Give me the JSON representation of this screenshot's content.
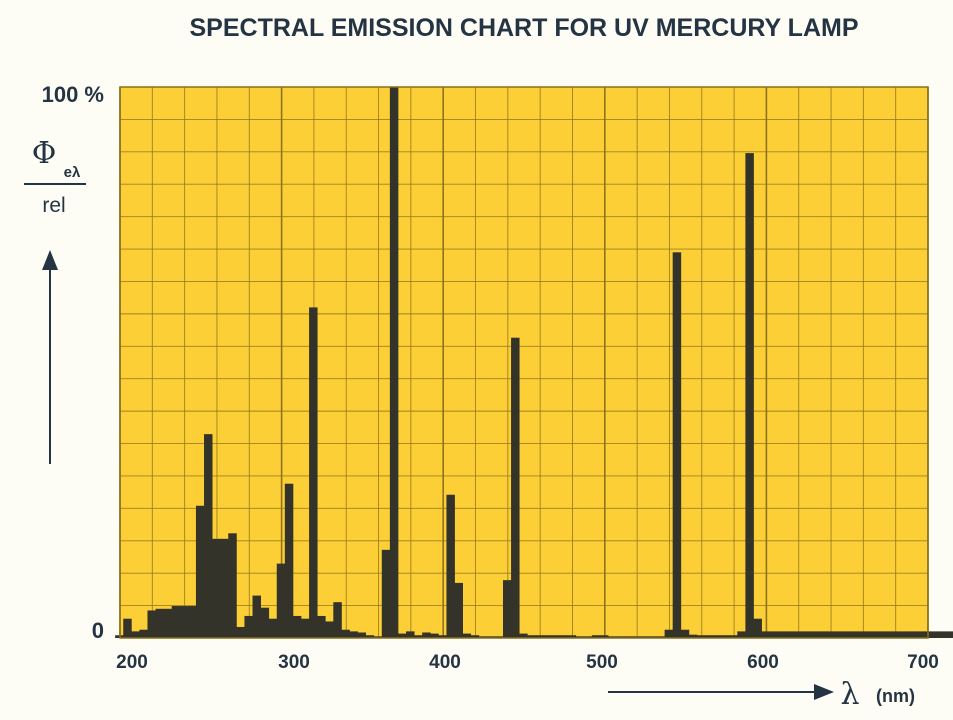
{
  "chart_data": {
    "type": "bar",
    "title": "SPECTRAL EMISSION CHART FOR UV MERCURY LAMP",
    "ylabel": {
      "symbol": "Φ",
      "subscript": "eλ",
      "denominator": "rel"
    },
    "xlabel": {
      "symbol": "λ",
      "unit": "(nm)"
    },
    "xlim": [
      200,
      700
    ],
    "ylim": [
      0,
      100
    ],
    "x_ticks": [
      "200",
      "300",
      "400",
      "500",
      "600",
      "700"
    ],
    "y_ticks": [
      "0",
      "100 %"
    ],
    "grid": true,
    "spectrum": {
      "bin_width": 5,
      "x_start": 197,
      "values": [
        0.5,
        3.5,
        1.2,
        1.5,
        5,
        5.3,
        5.3,
        5.8,
        5.8,
        5.8,
        24,
        37,
        18,
        18,
        19,
        2,
        4,
        7.7,
        5.5,
        3.5,
        13.5,
        28,
        4,
        3.5,
        60,
        4,
        3,
        6.5,
        1.5,
        1.2,
        1,
        0.5,
        0.3,
        16,
        100,
        0.8,
        1.2,
        0.5,
        1,
        0.8,
        0.5,
        26,
        10,
        0.8,
        0.5,
        0.3,
        0.3,
        0.3,
        10.5,
        54.5,
        0.8,
        0.5,
        0.5,
        0.5,
        0.5,
        0.5,
        0.5,
        0.3,
        0.3,
        0.5,
        0.5,
        0.3,
        0.3,
        0.3,
        0.3,
        0.3,
        0.3,
        0.3,
        1.5,
        70,
        1.5,
        0.6,
        0.5,
        0.5,
        0.5,
        0.5,
        0.5,
        1.2,
        88,
        3.5,
        1.2,
        1.2,
        1.2,
        1.2,
        1.2,
        1.2,
        1.2,
        1.2,
        1.2,
        1.2,
        1.2,
        1.2,
        1.2,
        1.2,
        1.2,
        1.2,
        1.2,
        1.2,
        1.2,
        1.2,
        1.2,
        1.2,
        1.2,
        1.2,
        0.8,
        1
      ]
    },
    "colors": {
      "background": "#fbcf35",
      "grid": "#8a6e1d",
      "bars": "#34332a",
      "text": "#253442"
    }
  }
}
